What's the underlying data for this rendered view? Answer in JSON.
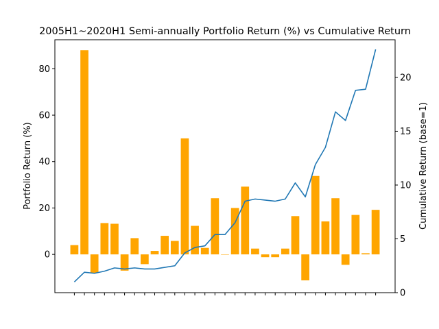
{
  "chart_data": {
    "type": "bar",
    "title": "2005H1~2020H1 Semi-annually Portfolio Return (%) vs Cumulative Return",
    "ylabel_left": "Portfolio Return (%)",
    "ylabel_right": "Cumulative Return (base=1)",
    "x_tick_labels_visible": false,
    "ylim_left": [
      -16.5,
      92.5
    ],
    "ylim_right": [
      0,
      23.5
    ],
    "yticks_left": [
      0,
      20,
      40,
      60,
      80
    ],
    "yticks_right": [
      0,
      5,
      10,
      15,
      20
    ],
    "colors": {
      "bars": "#ffa500",
      "line": "#1f77b4"
    },
    "series": [
      {
        "kind": "bar",
        "axis": "left",
        "values": [
          4,
          88,
          -8,
          13.5,
          13.2,
          -7,
          7,
          -4.2,
          1.5,
          8,
          5.8,
          50,
          12.3,
          2.8,
          24.2,
          0,
          20,
          29.2,
          2.5,
          -1.2,
          -1.2,
          2.5,
          16.5,
          -11.2,
          33.8,
          14.2,
          24.2,
          -4.5,
          17,
          0.5,
          19.2
        ]
      },
      {
        "kind": "line",
        "axis": "right",
        "values": [
          1.0,
          1.9,
          1.8,
          2.0,
          2.3,
          2.2,
          2.3,
          2.2,
          2.2,
          2.35,
          2.5,
          3.7,
          4.2,
          4.35,
          5.4,
          5.4,
          6.5,
          8.5,
          8.7,
          8.6,
          8.5,
          8.7,
          10.2,
          8.9,
          11.9,
          13.5,
          16.8,
          16.0,
          18.8,
          18.9,
          22.6
        ]
      }
    ]
  }
}
